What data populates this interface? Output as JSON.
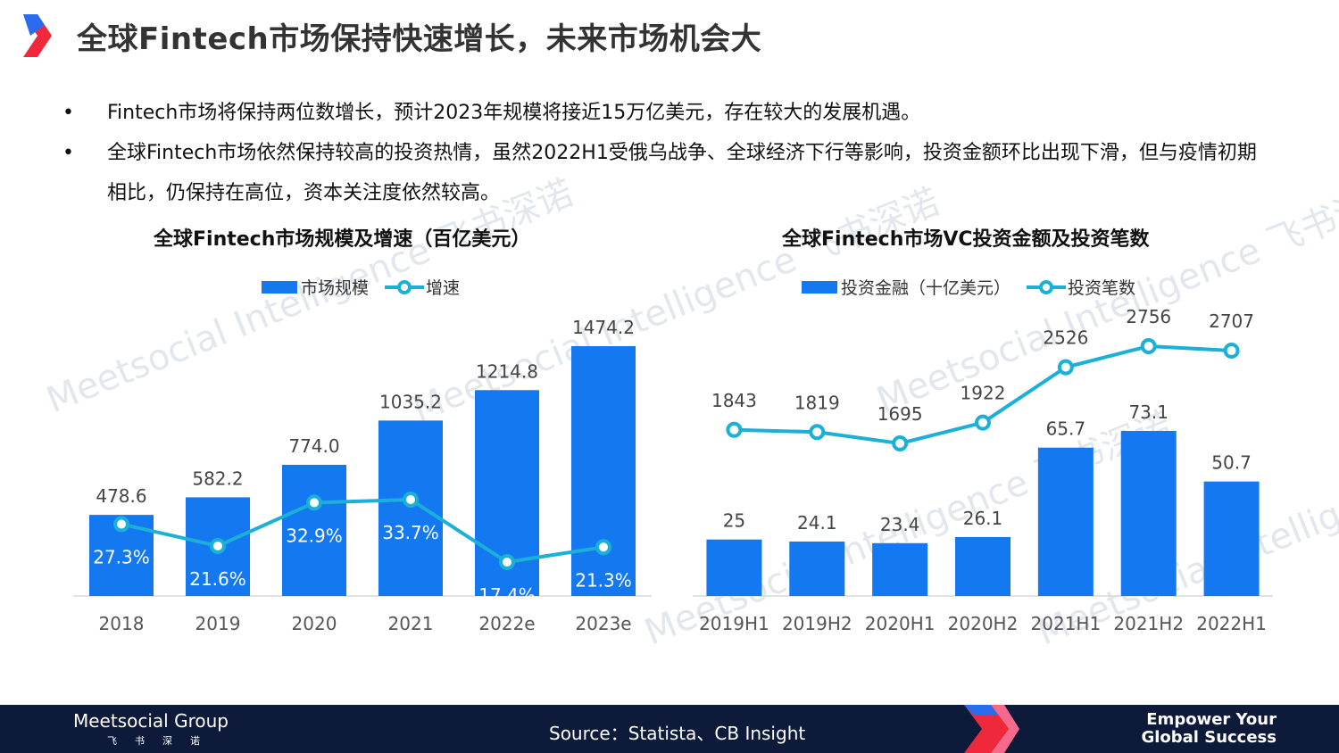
{
  "header": {
    "title": "全球Fintech市场保持快速增长，未来市场机会大",
    "brand_color": "#F0283C"
  },
  "bullets": [
    "Fintech市场将保持两位数增长，预计2023年规模将接近15万亿美元，存在较大的发展机遇。",
    "全球Fintech市场依然保持较高的投资热情，虽然2022H1受俄乌战争、全球经济下行等影响，投资金额环比出现下滑，但与疫情初期相比，仍保持在高位，资本关注度依然较高。"
  ],
  "bullet_symbol": "•",
  "chart_data": [
    {
      "type": "bar",
      "title": "全球Fintech市场规模及增速（百亿美元）",
      "categories": [
        "2018",
        "2019",
        "2020",
        "2021",
        "2022e",
        "2023e"
      ],
      "series": [
        {
          "name": "市场规模",
          "type": "bar",
          "values": [
            478.6,
            582.2,
            774.0,
            1035.2,
            1214.8,
            1474.2
          ],
          "labels": [
            "478.6",
            "582.2",
            "774.0",
            "1035.2",
            "1214.8",
            "1474.2"
          ],
          "color": "#1478F0"
        },
        {
          "name": "增速",
          "type": "line",
          "values": [
            27.3,
            21.6,
            32.9,
            33.7,
            17.4,
            21.3
          ],
          "labels": [
            "27.3%",
            "21.6%",
            "32.9%",
            "33.7%",
            "17.4%",
            "21.3%"
          ],
          "color": "#1BB0D8"
        }
      ],
      "ylim": [
        0,
        1500
      ],
      "y2lim": [
        0,
        100
      ],
      "legend": "top-center",
      "grid": false
    },
    {
      "type": "bar",
      "title": "全球Fintech市场VC投资金额及投资笔数",
      "categories": [
        "2019H1",
        "2019H2",
        "2020H1",
        "2020H2",
        "2021H1",
        "2021H2",
        "2022H1"
      ],
      "series": [
        {
          "name": "投资金融（十亿美元）",
          "type": "bar",
          "values": [
            25,
            24.1,
            23.4,
            26.1,
            65.7,
            73.1,
            50.7
          ],
          "labels": [
            "25",
            "24.1",
            "23.4",
            "26.1",
            "65.7",
            "73.1",
            "50.7"
          ],
          "color": "#1478F0"
        },
        {
          "name": "投资笔数",
          "type": "line",
          "values": [
            1843,
            1819,
            1695,
            1922,
            2526,
            2756,
            2707
          ],
          "labels": [
            "1843",
            "1819",
            "1695",
            "1922",
            "2526",
            "2756",
            "2707"
          ],
          "color": "#1BB0D8"
        }
      ],
      "ylim": [
        0,
        80
      ],
      "y2lim": [
        0,
        3000
      ],
      "legend": "top-center",
      "grid": false
    }
  ],
  "watermark": "Meetsocial Intelligence 飞书深诺",
  "footer": {
    "brand": "Meetsocial Group",
    "brand_sub": "飞书深诺",
    "source": "Source：Statista、CB Insight",
    "slogan_line1": "Empower Your",
    "slogan_line2": "Global Success"
  }
}
